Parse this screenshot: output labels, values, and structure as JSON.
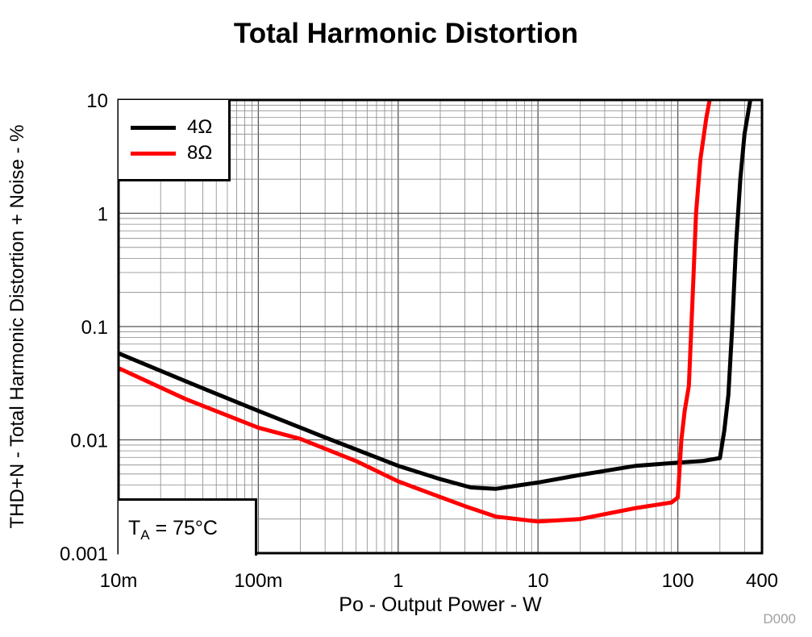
{
  "chart_data": {
    "type": "line",
    "title": "Total Harmonic Distortion",
    "xlabel": "Po - Output Power - W",
    "ylabel": "THD+N - Total Harmonic Distortion + Noise - %",
    "xscale": "log",
    "yscale": "log",
    "xlim": [
      0.01,
      400
    ],
    "ylim": [
      0.001,
      10
    ],
    "xticks": [
      {
        "v": 0.01,
        "label": "10m"
      },
      {
        "v": 0.1,
        "label": "100m"
      },
      {
        "v": 1,
        "label": "1"
      },
      {
        "v": 10,
        "label": "10"
      },
      {
        "v": 100,
        "label": "100"
      },
      {
        "v": 400,
        "label": "400"
      }
    ],
    "yticks": [
      {
        "v": 0.001,
        "label": "0.001"
      },
      {
        "v": 0.01,
        "label": "0.01"
      },
      {
        "v": 0.1,
        "label": "0.1"
      },
      {
        "v": 1,
        "label": "1"
      },
      {
        "v": 10,
        "label": "10"
      }
    ],
    "grid": true,
    "legend_position": "top-left",
    "series": [
      {
        "name": "4Ω",
        "color": "#000000",
        "x": [
          0.01,
          0.03,
          0.1,
          0.3,
          1,
          2,
          3.3,
          5,
          10,
          20,
          50,
          100,
          150,
          200,
          215,
          230,
          245,
          260,
          280,
          300,
          330
        ],
        "y": [
          0.058,
          0.033,
          0.018,
          0.0105,
          0.0059,
          0.0045,
          0.0038,
          0.0037,
          0.0042,
          0.0049,
          0.0059,
          0.0063,
          0.0065,
          0.0069,
          0.012,
          0.025,
          0.1,
          0.5,
          2,
          5,
          10
        ]
      },
      {
        "name": "8Ω",
        "color": "#ff0000",
        "x": [
          0.01,
          0.03,
          0.1,
          0.2,
          0.5,
          1,
          3,
          5,
          10,
          20,
          50,
          90,
          100,
          106,
          112,
          120,
          128,
          135,
          145,
          160,
          169
        ],
        "y": [
          0.043,
          0.023,
          0.0128,
          0.0102,
          0.0065,
          0.0043,
          0.0026,
          0.0021,
          0.0019,
          0.002,
          0.0025,
          0.0028,
          0.0031,
          0.01,
          0.018,
          0.03,
          0.2,
          1,
          3,
          7,
          10
        ]
      }
    ],
    "annotation": "TA = 75°C",
    "annotation_main": "T",
    "annotation_sub": "A",
    "annotation_rest": " = 75°C"
  },
  "figure_code": "D000"
}
